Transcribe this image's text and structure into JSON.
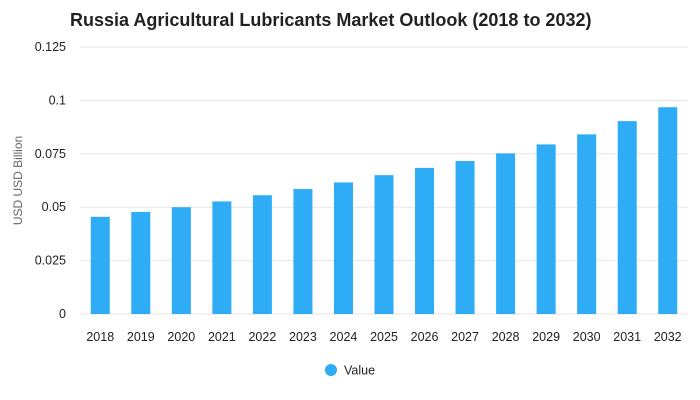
{
  "chart_data": {
    "type": "bar",
    "title": "Russia Agricultural Lubricants Market Outlook (2018 to 2032)",
    "xlabel": "",
    "ylabel": "USD USD Billion",
    "categories": [
      "2018",
      "2019",
      "2020",
      "2021",
      "2022",
      "2023",
      "2024",
      "2025",
      "2026",
      "2027",
      "2028",
      "2029",
      "2030",
      "2031",
      "2032"
    ],
    "series": [
      {
        "name": "Value",
        "color": "#2eacf6",
        "values": [
          0.0455,
          0.0478,
          0.05,
          0.0527,
          0.0556,
          0.0585,
          0.0616,
          0.065,
          0.0684,
          0.0716,
          0.0752,
          0.0794,
          0.0841,
          0.0903,
          0.0968
        ]
      }
    ],
    "ylim": [
      0,
      0.125
    ],
    "yticks": [
      0,
      0.025,
      0.05,
      0.075,
      0.1,
      0.125
    ],
    "ytick_labels": [
      "0",
      "0.025",
      "0.05",
      "0.075",
      "0.1",
      "0.125"
    ],
    "grid": true,
    "legend": {
      "position": "bottom-center",
      "entries": [
        "Value"
      ]
    }
  }
}
